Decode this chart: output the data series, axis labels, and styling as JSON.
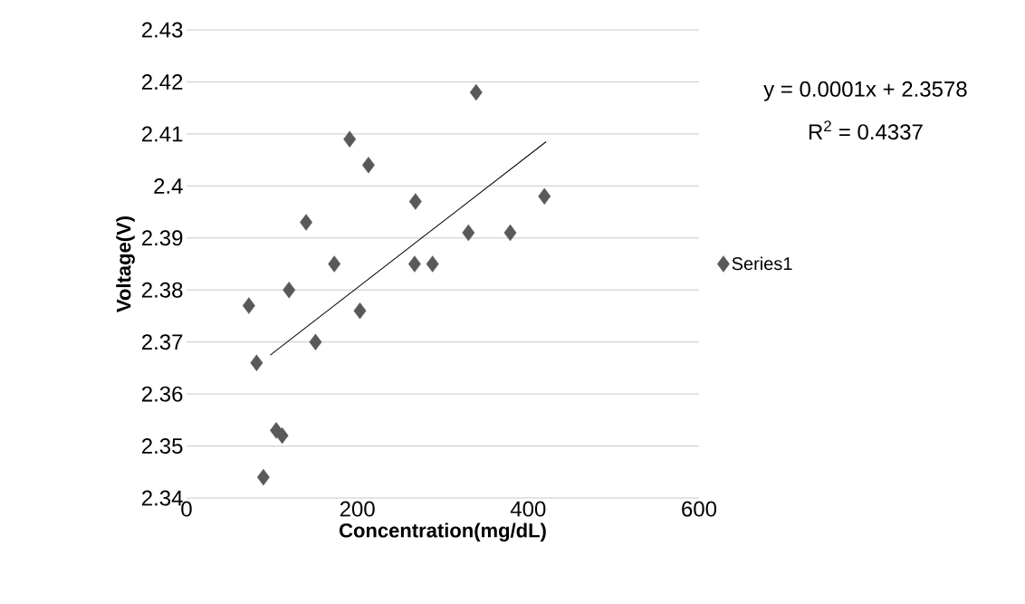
{
  "chart_data": {
    "type": "scatter",
    "xlabel": "Concentration(mg/dL)",
    "ylabel": "Voltage(V)",
    "annotations": [
      "y = 0.0001x + 2.3578",
      "R$^{2}$ = 0.4337"
    ],
    "series": [
      {
        "name": "Series1",
        "color": "#595959",
        "marker": "diamond",
        "x": [
          73,
          82,
          90,
          105,
          112,
          120,
          140,
          151,
          173,
          191,
          203,
          213,
          268,
          267,
          288,
          330,
          339,
          379,
          419
        ],
        "values": [
          2.377,
          2.366,
          2.344,
          2.353,
          2.352,
          2.38,
          2.393,
          2.37,
          2.385,
          2.409,
          2.376,
          2.404,
          2.397,
          2.385,
          2.385,
          2.391,
          2.418,
          2.391,
          2.398
        ]
      },
      {
        "type": "line",
        "color": "#000000",
        "marker": "none",
        "x": [
          98,
          421
        ],
        "values": [
          2.3675,
          2.4085
        ]
      }
    ],
    "xlim": [
      0,
      600
    ],
    "xticks": [
      0,
      200,
      400,
      600
    ],
    "ylim": [
      2.34,
      2.43
    ],
    "yticks": [
      2.34,
      2.35,
      2.36,
      2.37,
      2.38,
      2.39,
      2.4,
      2.41,
      2.42,
      2.43
    ],
    "grid": "y",
    "legend": "right"
  }
}
